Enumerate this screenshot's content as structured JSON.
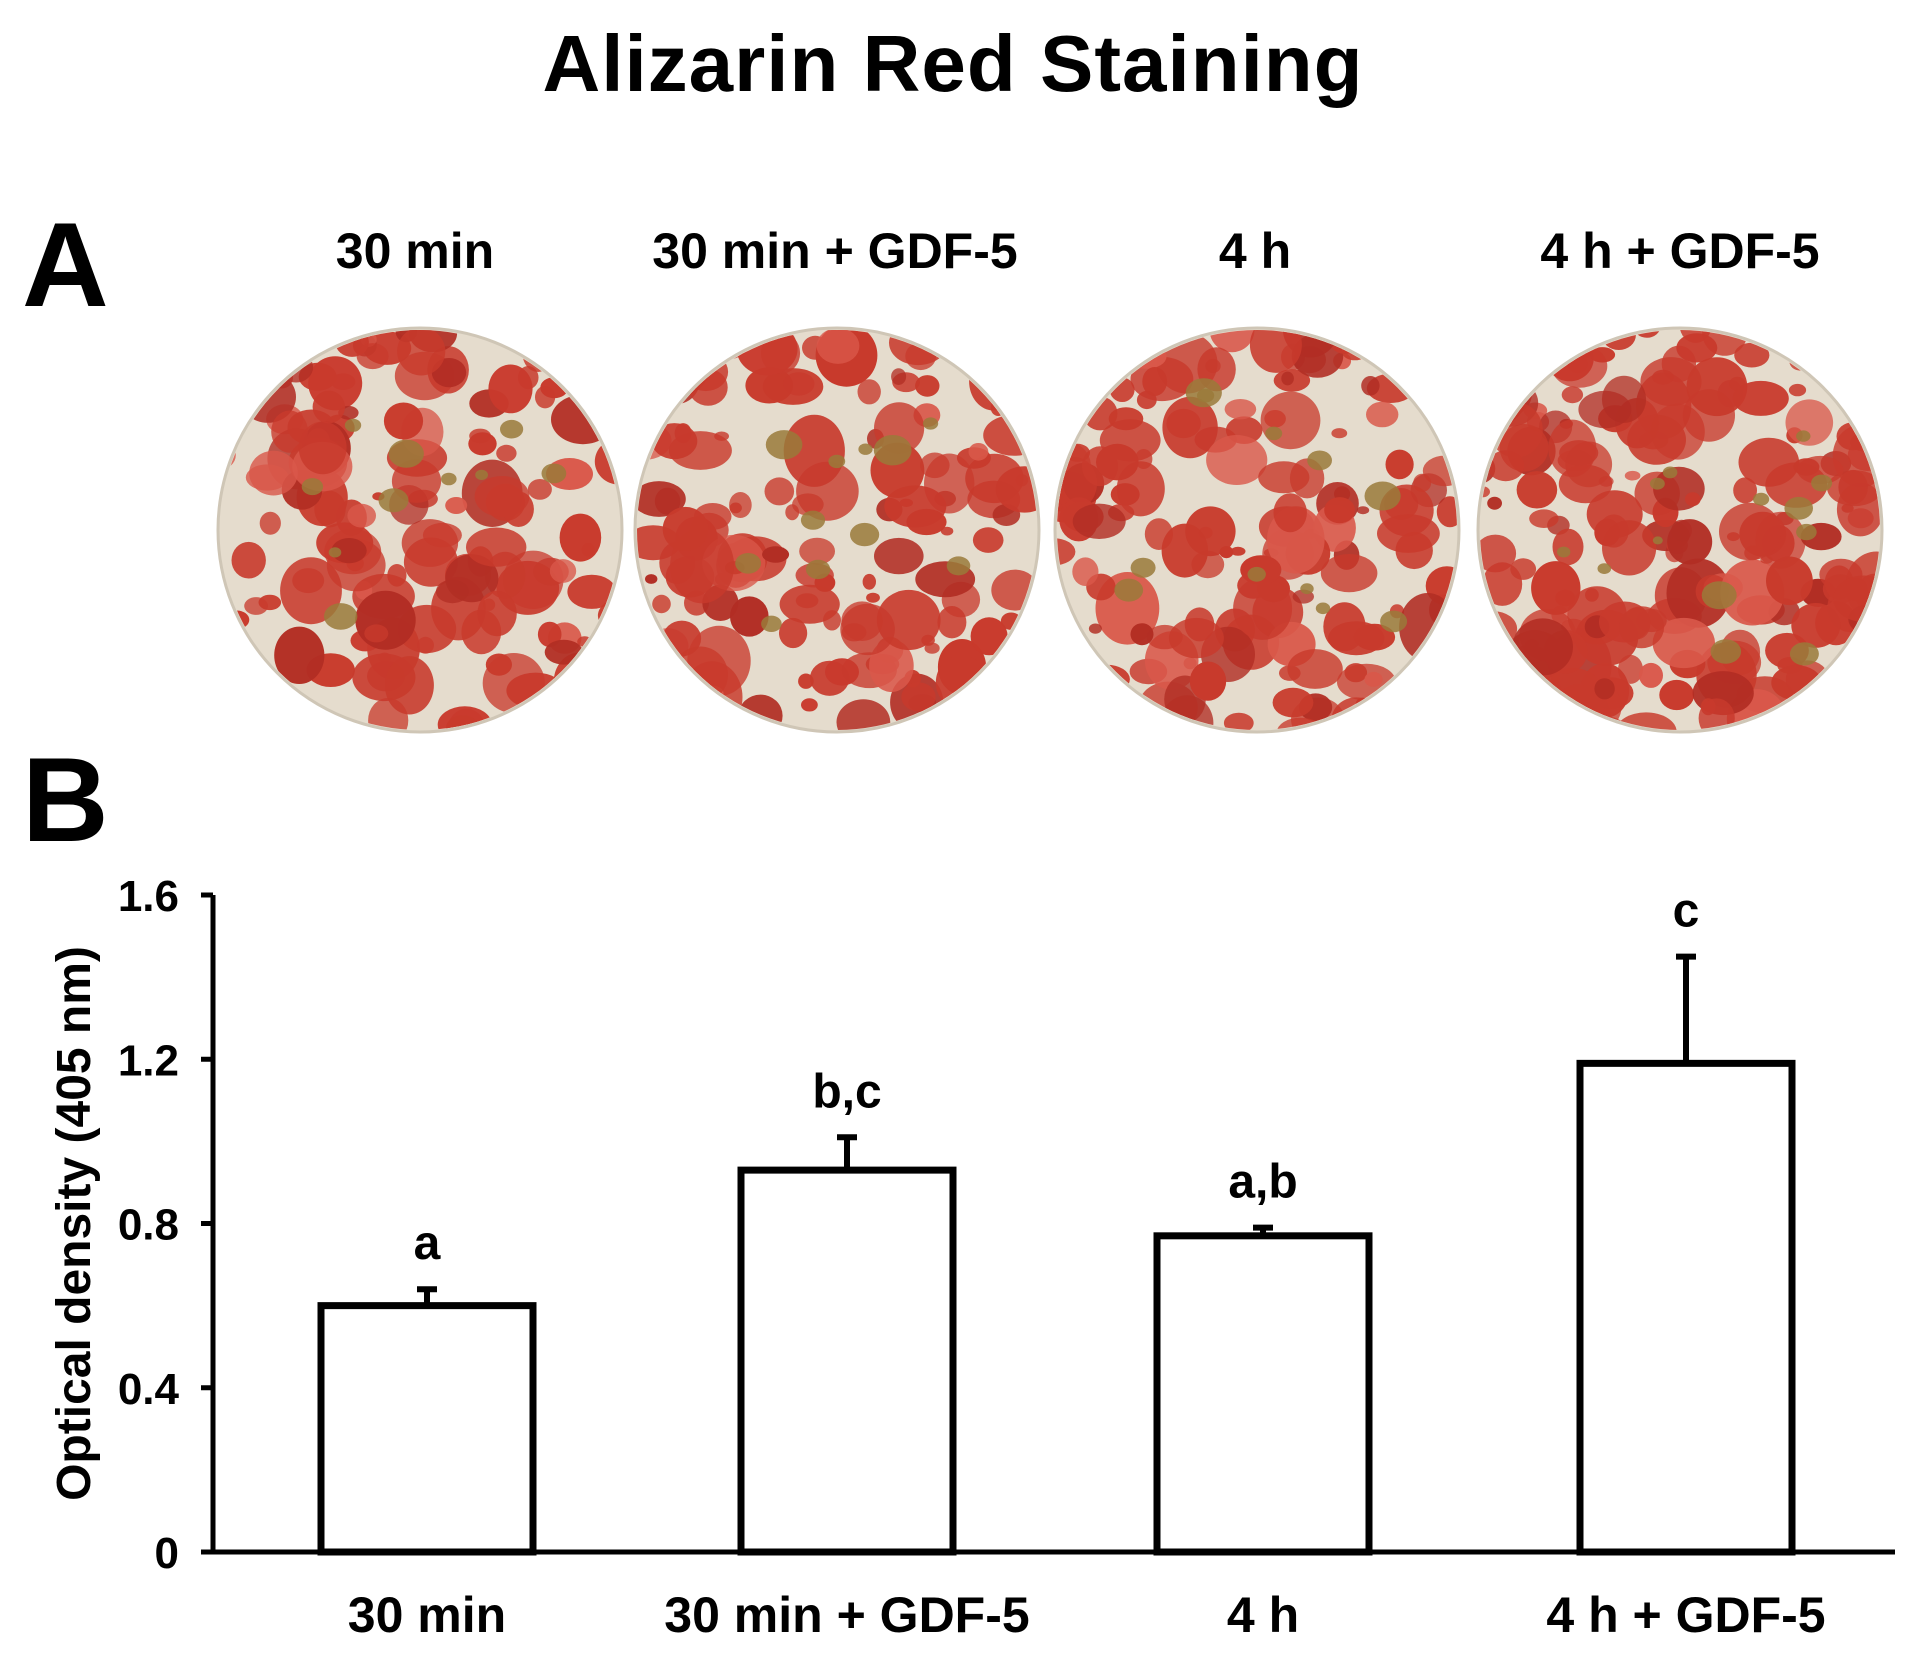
{
  "title": "Alizarin Red Staining",
  "panel_a": {
    "letter": "A",
    "wells": [
      {
        "label": "30 min",
        "stain_coverage": 0.55
      },
      {
        "label": "30 min + GDF-5",
        "stain_coverage": 0.65
      },
      {
        "label": "4 h",
        "stain_coverage": 0.6
      },
      {
        "label": "4 h + GDF-5",
        "stain_coverage": 0.85
      }
    ],
    "colors": {
      "stain": "#c83a2c",
      "background": "#e5dccd",
      "mineral": "#9a7a3a"
    }
  },
  "panel_b": {
    "letter": "B"
  },
  "chart_data": {
    "type": "bar",
    "title": "",
    "xlabel": "",
    "ylabel": "Optical density (405 nm)",
    "categories": [
      "30 min",
      "30 min + GDF-5",
      "4 h",
      "4 h + GDF-5"
    ],
    "values": [
      0.6,
      0.93,
      0.77,
      1.19
    ],
    "errors": [
      0.04,
      0.08,
      0.02,
      0.26
    ],
    "significance_labels": [
      "a",
      "b,c",
      "a,b",
      "c"
    ],
    "ylim": [
      0,
      1.6
    ],
    "yticks": [
      0,
      0.4,
      0.8,
      1.2,
      1.6
    ],
    "ytick_labels": [
      "0",
      "0.4",
      "0.8",
      "1.2",
      "1.6"
    ],
    "grid": false,
    "bar_fill": "#ffffff",
    "bar_edge": "#000000"
  }
}
